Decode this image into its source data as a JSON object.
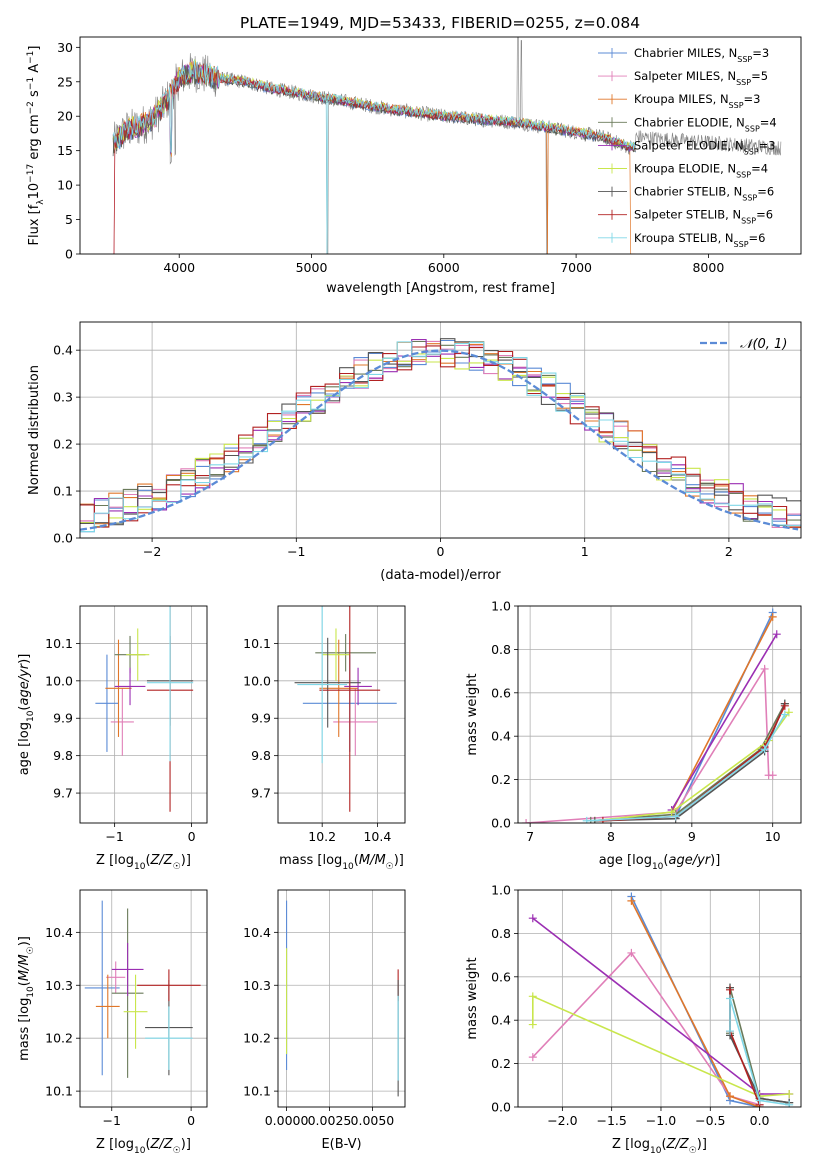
{
  "title": "PLATE=1949, MJD=53433, FIBERID=0255, z=0.084",
  "colors": {
    "Chabrier MILES": "#5b8bd6",
    "Salpeter MILES": "#e07fb8",
    "Kroupa MILES": "#e0772a",
    "Chabrier ELODIE": "#6a7a5a",
    "Salpeter ELODIE": "#9b2fb3",
    "Kroupa ELODIE": "#c9e64c",
    "Chabrier STELIB": "#555555",
    "Salpeter STELIB": "#b22222",
    "Kroupa STELIB": "#80d8e8"
  },
  "chart_data": [
    {
      "id": "spectrum",
      "type": "line",
      "xlabel": "wavelength [Angstrom, rest frame]",
      "ylabel": "Flux [f_λ10⁻¹⁷ erg cm⁻² s⁻¹ A⁻¹]",
      "xlim": [
        3250,
        8700
      ],
      "ylim": [
        0,
        31.5
      ],
      "xticks": [
        4000,
        5000,
        6000,
        7000,
        8000
      ],
      "yticks": [
        0,
        5,
        10,
        15,
        20,
        25,
        30
      ],
      "legend_position": "top-right",
      "legend": [
        {
          "name": "Chabrier MILES",
          "nssp": "3"
        },
        {
          "name": "Salpeter MILES",
          "nssp": "5"
        },
        {
          "name": "Kroupa MILES",
          "nssp": "3"
        },
        {
          "name": "Chabrier ELODIE",
          "nssp": "4"
        },
        {
          "name": "Salpeter ELODIE",
          "nssp": "3"
        },
        {
          "name": "Kroupa ELODIE",
          "nssp": "4"
        },
        {
          "name": "Chabrier STELIB",
          "nssp": "6"
        },
        {
          "name": "Salpeter STELIB",
          "nssp": "6"
        },
        {
          "name": "Kroupa STELIB",
          "nssp": "6"
        }
      ],
      "continuum": {
        "x": [
          3500,
          3600,
          3700,
          3800,
          3900,
          4000,
          4100,
          4200,
          4300,
          4500,
          4700,
          5000,
          5300,
          5600,
          6000,
          6300,
          6600,
          6900,
          7200,
          7400
        ],
        "y": [
          16,
          18,
          18.5,
          19.5,
          22,
          25.5,
          26.5,
          26,
          25.5,
          25,
          24,
          23,
          22,
          21,
          20,
          19.5,
          19,
          18,
          17,
          15.5
        ]
      }
    },
    {
      "id": "residuals",
      "type": "line",
      "xlabel": "(data-model)/error",
      "ylabel": "Normed distribution",
      "xlim": [
        -2.5,
        2.5
      ],
      "ylim": [
        0,
        0.46
      ],
      "xticks": [
        -2,
        -1,
        0,
        1,
        2
      ],
      "yticks": [
        0.0,
        0.1,
        0.2,
        0.3,
        0.4
      ],
      "grid": true,
      "legend_position": "top-right",
      "legend_label": "𝒩(0, 1)"
    },
    {
      "id": "age-vs-Z",
      "type": "scatter",
      "xlabel": "Z [log₁₀(Z/Z☉)]",
      "ylabel": "age [log₁₀(age/yr)]",
      "xlim": [
        -1.45,
        0.2
      ],
      "ylim": [
        9.62,
        10.2
      ],
      "xticks": [
        -1,
        0
      ],
      "yticks": [
        9.7,
        9.8,
        9.9,
        10.0,
        10.1
      ],
      "grid": true,
      "points": [
        {
          "model": "Chabrier MILES",
          "x": -1.1,
          "xerr": 0.15,
          "y": 9.94,
          "yerr": 0.13
        },
        {
          "model": "Salpeter MILES",
          "x": -0.9,
          "xerr": 0.15,
          "y": 9.89,
          "yerr": 0.09
        },
        {
          "model": "Kroupa MILES",
          "x": -0.95,
          "xerr": 0.17,
          "y": 9.98,
          "yerr": 0.13
        },
        {
          "model": "Chabrier ELODIE",
          "x": -0.8,
          "xerr": 0.2,
          "y": 10.07,
          "yerr": 0.05
        },
        {
          "model": "Salpeter ELODIE",
          "x": -0.8,
          "xerr": 0.2,
          "y": 9.985,
          "yerr": 0.05
        },
        {
          "model": "Kroupa ELODIE",
          "x": -0.7,
          "xerr": 0.15,
          "y": 10.07,
          "yerr": 0.07
        },
        {
          "model": "Chabrier STELIB",
          "x": -0.28,
          "xerr": 0.3,
          "y": 10.0,
          "yerr": 0.12
        },
        {
          "model": "Salpeter STELIB",
          "x": -0.28,
          "xerr": 0.3,
          "y": 9.975,
          "yerr": 0.325
        },
        {
          "model": "Kroupa STELIB",
          "x": -0.28,
          "xerr": 0.3,
          "y": 9.995,
          "yerr": 0.21
        }
      ]
    },
    {
      "id": "age-vs-mass",
      "type": "scatter",
      "xlabel": "mass [log₁₀(M/M☉)]",
      "ylabel": "",
      "xlim": [
        10.04,
        10.5
      ],
      "ylim": [
        9.62,
        10.2
      ],
      "xticks": [
        10.2,
        10.4
      ],
      "yticks": [
        9.7,
        9.8,
        9.9,
        10.0,
        10.1
      ],
      "grid": true,
      "points": [
        {
          "model": "Chabrier MILES",
          "x": 10.3,
          "xerr": 0.17,
          "y": 9.94,
          "yerr": 0.13
        },
        {
          "model": "Salpeter MILES",
          "x": 10.32,
          "xerr": 0.08,
          "y": 9.89,
          "yerr": 0.09
        },
        {
          "model": "Kroupa MILES",
          "x": 10.26,
          "xerr": 0.07,
          "y": 9.98,
          "yerr": 0.13
        },
        {
          "model": "Chabrier ELODIE",
          "x": 10.285,
          "xerr": 0.11,
          "y": 10.075,
          "yerr": 0.05
        },
        {
          "model": "Salpeter ELODIE",
          "x": 10.33,
          "xerr": 0.05,
          "y": 9.985,
          "yerr": 0.05
        },
        {
          "model": "Kroupa ELODIE",
          "x": 10.25,
          "xerr": 0.05,
          "y": 10.07,
          "yerr": 0.07
        },
        {
          "model": "Chabrier STELIB",
          "x": 10.22,
          "xerr": 0.12,
          "y": 9.995,
          "yerr": 0.12
        },
        {
          "model": "Salpeter STELIB",
          "x": 10.3,
          "xerr": 0.11,
          "y": 9.975,
          "yerr": 0.325
        },
        {
          "model": "Kroupa STELIB",
          "x": 10.2,
          "xerr": 0.09,
          "y": 9.99,
          "yerr": 0.21
        }
      ]
    },
    {
      "id": "weight-vs-age",
      "type": "line",
      "xlabel": "age [log₁₀(age/yr)]",
      "ylabel": "mass weight",
      "xlim": [
        6.85,
        10.35
      ],
      "ylim": [
        0,
        1.0
      ],
      "xticks": [
        7,
        8,
        9,
        10
      ],
      "yticks": [
        0.0,
        0.2,
        0.4,
        0.6,
        0.8,
        1.0
      ],
      "grid": true,
      "series": [
        {
          "model": "Chabrier MILES",
          "x": [
            8.8,
            10.0
          ],
          "y": [
            0.03,
            0.97
          ]
        },
        {
          "model": "Salpeter MILES",
          "x": [
            6.95,
            8.8,
            9.9,
            9.95,
            10.0
          ],
          "y": [
            0.0,
            0.05,
            0.71,
            0.22,
            0.22
          ]
        },
        {
          "model": "Kroupa MILES",
          "x": [
            8.75,
            10.0
          ],
          "y": [
            0.05,
            0.95
          ]
        },
        {
          "model": "Chabrier ELODIE",
          "x": [
            7.75,
            8.8,
            9.85,
            10.15
          ],
          "y": [
            0.01,
            0.04,
            0.34,
            0.55
          ]
        },
        {
          "model": "Salpeter ELODIE",
          "x": [
            8.75,
            10.05
          ],
          "y": [
            0.06,
            0.87
          ]
        },
        {
          "model": "Kroupa ELODIE",
          "x": [
            7.8,
            8.75,
            9.95,
            10.2
          ],
          "y": [
            0.01,
            0.05,
            0.38,
            0.51
          ]
        },
        {
          "model": "Chabrier STELIB",
          "x": [
            7.8,
            8.8,
            9.9,
            10.15
          ],
          "y": [
            0.01,
            0.02,
            0.33,
            0.55
          ]
        },
        {
          "model": "Salpeter STELIB",
          "x": [
            7.9,
            8.8,
            9.9,
            10.15
          ],
          "y": [
            0.01,
            0.03,
            0.35,
            0.54
          ]
        },
        {
          "model": "Kroupa STELIB",
          "x": [
            7.7,
            8.8,
            9.9,
            10.15
          ],
          "y": [
            0.01,
            0.03,
            0.34,
            0.5
          ]
        }
      ]
    },
    {
      "id": "mass-vs-Z",
      "type": "scatter",
      "xlabel": "Z [log₁₀(Z/Z☉)]",
      "ylabel": "mass [log₁₀(M/M☉)]",
      "xlim": [
        -1.4,
        0.2
      ],
      "ylim": [
        10.07,
        10.48
      ],
      "xticks": [
        -1,
        0
      ],
      "yticks": [
        10.1,
        10.2,
        10.3,
        10.4
      ],
      "grid": true,
      "points": [
        {
          "model": "Chabrier MILES",
          "x": -1.12,
          "xerr": 0.22,
          "y": 10.295,
          "yerr": 0.165
        },
        {
          "model": "Salpeter MILES",
          "x": -0.95,
          "xerr": 0.12,
          "y": 10.315,
          "yerr": 0.03
        },
        {
          "model": "Kroupa MILES",
          "x": -1.05,
          "xerr": 0.15,
          "y": 10.26,
          "yerr": 0.06
        },
        {
          "model": "Chabrier ELODIE",
          "x": -0.8,
          "xerr": 0.2,
          "y": 10.285,
          "yerr": 0.16
        },
        {
          "model": "Salpeter ELODIE",
          "x": -0.8,
          "xerr": 0.2,
          "y": 10.33,
          "yerr": 0.05
        },
        {
          "model": "Kroupa ELODIE",
          "x": -0.7,
          "xerr": 0.15,
          "y": 10.25,
          "yerr": 0.07
        },
        {
          "model": "Chabrier STELIB",
          "x": -0.28,
          "xerr": 0.3,
          "y": 10.22,
          "yerr": 0.09
        },
        {
          "model": "Salpeter STELIB",
          "x": -0.28,
          "xerr": 0.4,
          "y": 10.3,
          "yerr": 0.03
        },
        {
          "model": "Kroupa STELIB",
          "x": -0.28,
          "xerr": 0.3,
          "y": 10.2,
          "yerr": 0.06
        }
      ]
    },
    {
      "id": "mass-vs-EBV",
      "type": "scatter",
      "xlabel": "E(B-V)",
      "ylabel": "",
      "xlim": [
        -0.0005,
        0.0069
      ],
      "ylim": [
        10.07,
        10.48
      ],
      "xticks": [
        0.0,
        0.0025,
        0.005
      ],
      "xticklabels": [
        "0.0000",
        "0.0025",
        "0.0050"
      ],
      "yticks": [
        10.1,
        10.2,
        10.3,
        10.4
      ],
      "grid": true,
      "points": [
        {
          "model": "Chabrier MILES",
          "x": 0.0,
          "y": 10.3,
          "yerr": 0.16
        },
        {
          "model": "Kroupa ELODIE",
          "x": 0.0,
          "y": 10.27,
          "yerr": 0.1
        },
        {
          "model": "Salpeter STELIB",
          "x": 0.0065,
          "y": 10.3,
          "yerr": 0.03
        },
        {
          "model": "Chabrier STELIB",
          "x": 0.0065,
          "y": 10.2,
          "yerr": 0.11
        },
        {
          "model": "Kroupa STELIB",
          "x": 0.0065,
          "y": 10.2,
          "yerr": 0.08
        }
      ]
    },
    {
      "id": "weight-vs-Z",
      "type": "line",
      "xlabel": "Z [log₁₀(Z/Z☉)]",
      "ylabel": "mass weight",
      "xlim": [
        -2.45,
        0.42
      ],
      "ylim": [
        0,
        1.0
      ],
      "xticks": [
        -2.0,
        -1.5,
        -1.0,
        -0.5,
        0.0
      ],
      "yticks": [
        0.0,
        0.2,
        0.4,
        0.6,
        0.8,
        1.0
      ],
      "grid": true,
      "series": [
        {
          "model": "Chabrier MILES",
          "x": [
            -1.3,
            -0.3,
            0.0
          ],
          "y": [
            0.97,
            0.03,
            0.0
          ]
        },
        {
          "model": "Salpeter MILES",
          "x": [
            -2.3,
            -1.3,
            -0.3,
            0.0
          ],
          "y": [
            0.23,
            0.71,
            0.05,
            0.01
          ]
        },
        {
          "model": "Kroupa MILES",
          "x": [
            -1.3,
            -0.3,
            0.0
          ],
          "y": [
            0.95,
            0.05,
            0.0
          ]
        },
        {
          "model": "Chabrier ELODIE",
          "x": [
            -0.3,
            -0.3,
            0.0,
            0.3
          ],
          "y": [
            0.34,
            0.55,
            0.04,
            0.02
          ]
        },
        {
          "model": "Salpeter ELODIE",
          "x": [
            -2.3,
            0.0,
            0.3
          ],
          "y": [
            0.87,
            0.06,
            0.06
          ]
        },
        {
          "model": "Kroupa ELODIE",
          "x": [
            -2.3,
            -2.3,
            0.0,
            0.3
          ],
          "y": [
            0.38,
            0.51,
            0.05,
            0.06
          ]
        },
        {
          "model": "Chabrier STELIB",
          "x": [
            -0.3,
            -0.3,
            0.0,
            0.3
          ],
          "y": [
            0.55,
            0.33,
            0.04,
            0.02
          ]
        },
        {
          "model": "Salpeter STELIB",
          "x": [
            -0.3,
            -0.3,
            0.0
          ],
          "y": [
            0.54,
            0.35,
            0.01
          ]
        },
        {
          "model": "Kroupa STELIB",
          "x": [
            -0.3,
            -0.3,
            0.0,
            0.3
          ],
          "y": [
            0.35,
            0.5,
            0.03,
            0.01
          ]
        }
      ]
    }
  ]
}
